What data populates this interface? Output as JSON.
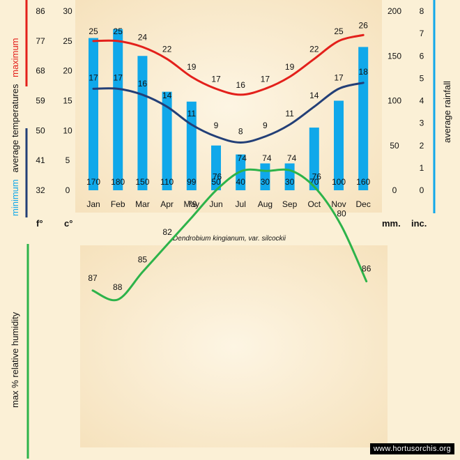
{
  "chart_data": [
    {
      "type": "bar+line",
      "title": "",
      "categories": [
        "Jan",
        "Feb",
        "Mar",
        "Apr",
        "May",
        "Jun",
        "Jul",
        "Aug",
        "Sep",
        "Oct",
        "Nov",
        "Dec"
      ],
      "rainfall": {
        "name": "average rainfall",
        "unit": "mm.",
        "values": [
          170,
          180,
          150,
          110,
          99,
          50,
          40,
          30,
          30,
          70,
          100,
          160
        ],
        "ylim": [
          0,
          200
        ],
        "ticks": [
          0,
          50,
          100,
          150,
          200
        ],
        "color": "#10a8ea"
      },
      "series": [
        {
          "name": "maximum",
          "values": [
            25,
            25,
            24,
            22,
            19,
            17,
            16,
            17,
            19,
            22,
            25,
            26
          ],
          "color": "#e3201b"
        },
        {
          "name": "minimum",
          "values": [
            17,
            17,
            16,
            14,
            11,
            9,
            8,
            9,
            11,
            14,
            17,
            18
          ],
          "color": "#233f77"
        }
      ],
      "celsius_axis": {
        "unit": "c°",
        "ylim": [
          0,
          30
        ],
        "ticks": [
          0,
          5,
          10,
          15,
          20,
          25,
          30
        ]
      },
      "fahrenheit_axis": {
        "unit": "f°",
        "ticks": [
          "32",
          "41",
          "50",
          "59",
          "68",
          "77",
          "86"
        ]
      },
      "inches_axis": {
        "unit": "inc.",
        "ylim": [
          0,
          8
        ],
        "ticks": [
          0,
          1,
          2,
          3,
          4,
          5,
          6,
          7,
          8
        ]
      },
      "left_label": {
        "minimum": "minimum",
        "average_temperatures": "average  temperatures",
        "maximum": "maximum"
      },
      "right_label": "average  rainfall",
      "caption": "Dendrobium  kingianum, var. silcockii"
    },
    {
      "type": "line",
      "title": "",
      "ylabel": "max  %  relative humidity",
      "categories": [
        "Jan",
        "Feb",
        "Mar",
        "Apr",
        "May",
        "Jun",
        "Jul",
        "Aug",
        "Sep",
        "Oct",
        "Nov",
        "Dec"
      ],
      "values": [
        87,
        88,
        85,
        82,
        79,
        76,
        74,
        74,
        74,
        76,
        80,
        86
      ],
      "ylim": [
        72,
        90
      ],
      "color": "#2db34a"
    }
  ],
  "watermark": "www.hortusorchis.org",
  "colors": {
    "background": "#fbf0d6",
    "panel": "#f8e5c4"
  }
}
